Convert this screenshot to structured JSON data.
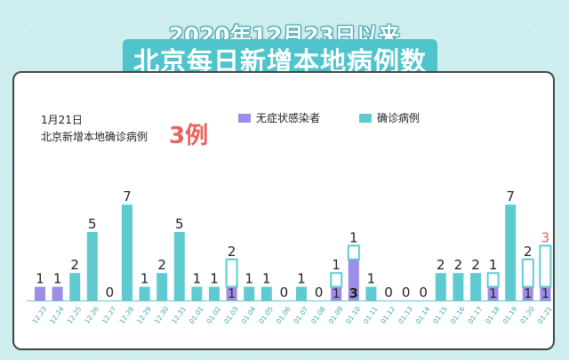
{
  "header": {
    "title_line1": "2020年12月23日以来",
    "title_line2": "北京每日新增本地病例数"
  },
  "annotation": {
    "date": "1月21日",
    "text": "北京新增本地确诊病例",
    "value": "3例"
  },
  "colors": {
    "asymptomatic": "#9a8ee6",
    "confirmed": "#5fcbd0",
    "highlight": "#e8615b",
    "background": "#cfeef0"
  },
  "chart_data": {
    "type": "bar",
    "stacked": true,
    "legend_placement": "top-right",
    "categories": [
      "12.23",
      "12.24",
      "12.25",
      "12.26",
      "12.27",
      "12.28",
      "12.29",
      "12.30",
      "12.31",
      "01.01",
      "01.02",
      "01.03",
      "01.04",
      "01.05",
      "01.06",
      "01.07",
      "01.08",
      "01.09",
      "01.10",
      "01.11",
      "01.12",
      "01.13",
      "01.14",
      "01.15",
      "01.16",
      "01.17",
      "01.18",
      "01.19",
      "01.20",
      "01.21"
    ],
    "series": [
      {
        "name": "无症状感染者",
        "values": [
          1,
          1,
          0,
          0,
          0,
          0,
          0,
          0,
          0,
          0,
          0,
          1,
          0,
          0,
          0,
          0,
          0,
          1,
          3,
          0,
          0,
          0,
          0,
          0,
          0,
          0,
          1,
          0,
          1,
          1
        ]
      },
      {
        "name": "确诊病例",
        "values": [
          0,
          0,
          2,
          5,
          0,
          7,
          1,
          2,
          5,
          1,
          1,
          2,
          1,
          1,
          0,
          1,
          0,
          1,
          1,
          1,
          0,
          0,
          0,
          2,
          2,
          2,
          1,
          7,
          2,
          3
        ]
      }
    ],
    "ylim": [
      0,
      7
    ]
  }
}
